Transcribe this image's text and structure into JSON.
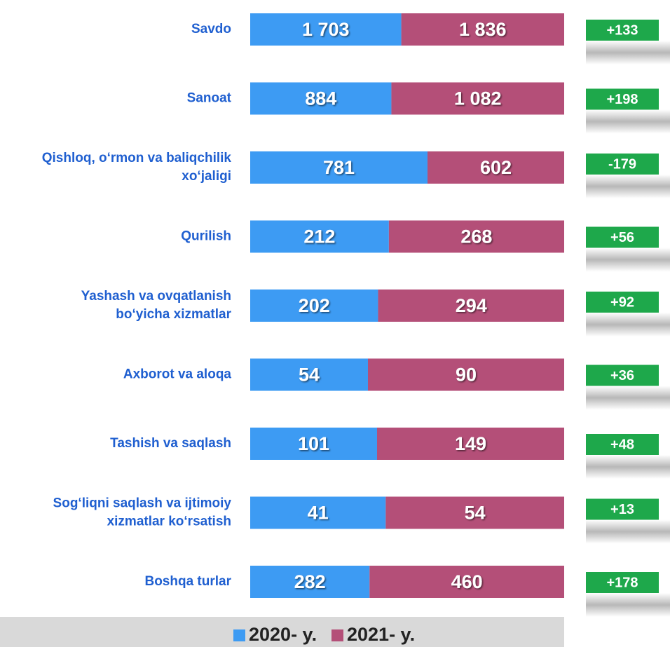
{
  "chart_data": {
    "type": "bar",
    "categories": [
      [
        "Savdo"
      ],
      [
        "Sanoat"
      ],
      [
        "Qishloq, o‘rmon va baliqchilik",
        "xo‘jaligi"
      ],
      [
        "Qurilish"
      ],
      [
        "Yashash va ovqatlanish",
        "bo‘yicha xizmatlar"
      ],
      [
        "Axborot va aloqa"
      ],
      [
        "Tashish va saqlash"
      ],
      [
        "Sog‘liqni saqlash va ijtimoiy",
        "xizmatlar ko‘rsatish"
      ],
      [
        "Boshqa turlar"
      ]
    ],
    "series": [
      {
        "name": "2020- y.",
        "color": "#3d9bf3",
        "values": [
          1703,
          884,
          781,
          212,
          202,
          54,
          101,
          41,
          282
        ],
        "value_labels": [
          "1 703",
          "884",
          "781",
          "212",
          "202",
          "54",
          "101",
          "41",
          "282"
        ]
      },
      {
        "name": "2021- y.",
        "color": "#b44f78",
        "values": [
          1836,
          1082,
          602,
          268,
          294,
          90,
          149,
          54,
          460
        ],
        "value_labels": [
          "1 836",
          "1 082",
          "602",
          "268",
          "294",
          "90",
          "149",
          "54",
          "460"
        ]
      }
    ],
    "changes": {
      "color": "#1ea84b",
      "values": [
        133,
        198,
        -179,
        56,
        92,
        36,
        48,
        13,
        178
      ],
      "value_labels": [
        "+133",
        "+198",
        "-179",
        "+56",
        "+92",
        "+36",
        "+48",
        "+13",
        "+178"
      ]
    }
  }
}
